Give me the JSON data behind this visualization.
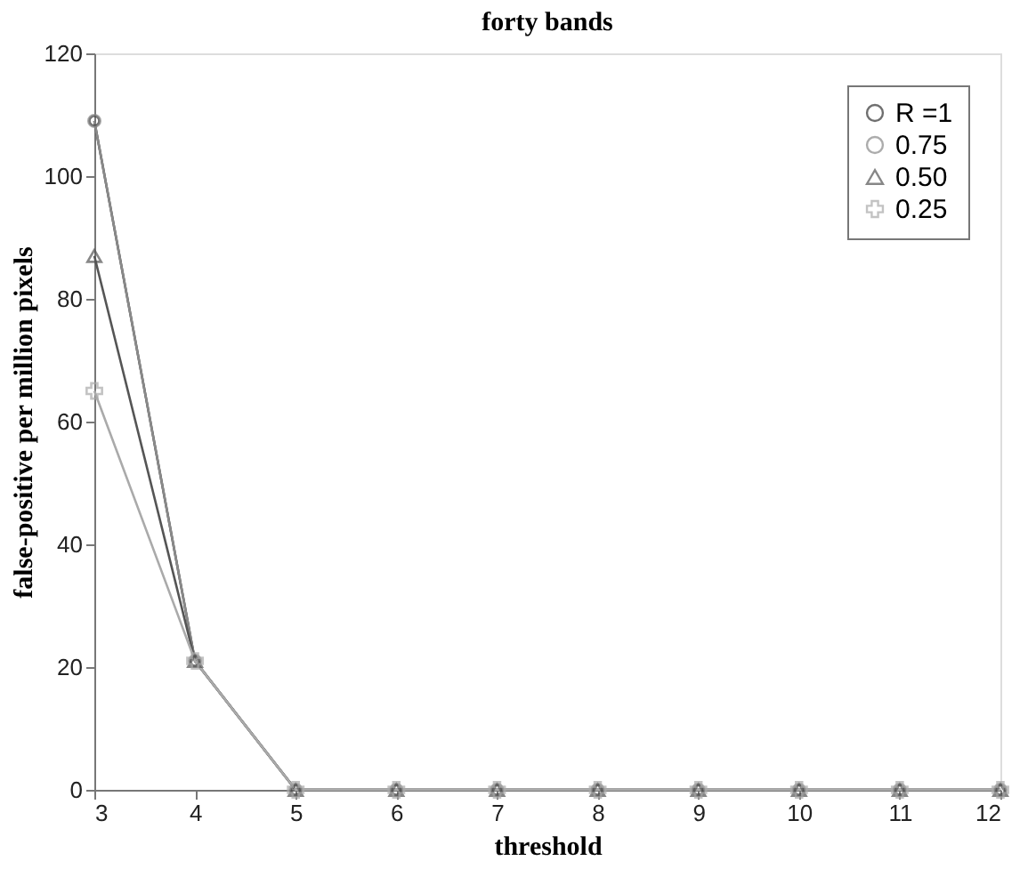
{
  "chart_data": {
    "type": "line",
    "title": "forty bands",
    "xlabel": "threshold",
    "ylabel": "false-positive per million pixels",
    "x": [
      3,
      4,
      5,
      6,
      7,
      8,
      9,
      10,
      11,
      12
    ],
    "series": [
      {
        "name": "R =1",
        "color": "#333333",
        "marker": "circle",
        "values": [
          109,
          21,
          0,
          0,
          0,
          0,
          0,
          0,
          0,
          0
        ]
      },
      {
        "name": "0.75",
        "color": "#8a8a8a",
        "marker": "circle",
        "values": [
          109,
          21,
          0,
          0,
          0,
          0,
          0,
          0,
          0,
          0
        ]
      },
      {
        "name": "0.50",
        "color": "#555555",
        "marker": "triangle",
        "values": [
          87,
          21,
          0,
          0,
          0,
          0,
          0,
          0,
          0,
          0
        ]
      },
      {
        "name": "0.25",
        "color": "#aaaaaa",
        "marker": "cross",
        "values": [
          65,
          21,
          0,
          0,
          0,
          0,
          0,
          0,
          0,
          0
        ]
      }
    ],
    "xlim": [
      3,
      12
    ],
    "xticks": [
      3,
      4,
      5,
      6,
      7,
      8,
      9,
      10,
      11,
      12
    ],
    "ylim": [
      0,
      120
    ],
    "yticks": [
      0,
      20,
      40,
      60,
      80,
      100,
      120
    ],
    "grid": false,
    "legend": "top right",
    "line_style": "solid"
  }
}
